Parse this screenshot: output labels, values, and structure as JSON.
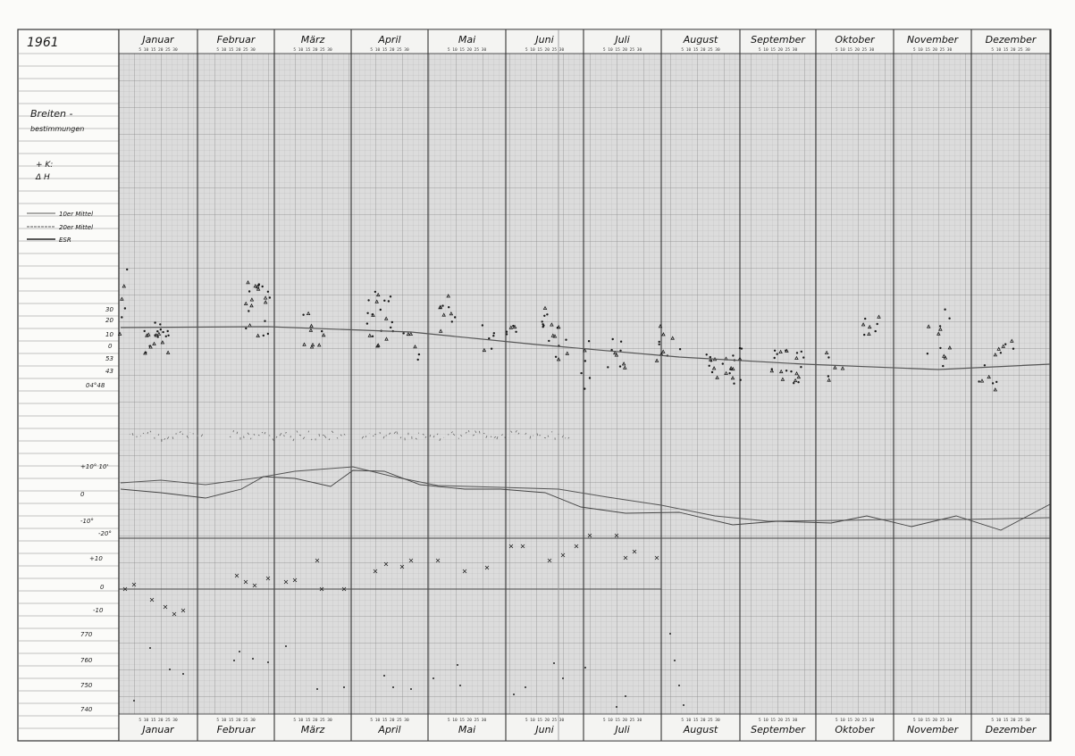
{
  "sheet": {
    "year": "1961",
    "title_line1": "Breiten -",
    "title_line2": "bestimmungen",
    "legend_symbols": [
      "+ K:",
      "Δ H"
    ],
    "legend_lines": [
      "10er Mittel",
      "20er Mittel",
      "ESR"
    ],
    "months_top": [
      "Januar",
      "Februar",
      "März",
      "April",
      "Mai",
      "Juni",
      "Juli",
      "August",
      "September",
      "Oktober",
      "November",
      "Dezember"
    ],
    "months_bottom": [
      "Januar",
      "Februar",
      "März",
      "April",
      "Mai",
      "Juni",
      "Juli",
      "August",
      "September",
      "Oktober",
      "November",
      "Dezember"
    ],
    "day_ticks": "5 10 15 20 25 30",
    "upper_axis_labels": [
      "30",
      "20",
      "10",
      "0",
      "53",
      "43",
      "04°48"
    ],
    "middle_axis_labels": [
      "+10° 10'",
      "0",
      "-10°",
      "-20°"
    ],
    "lower_axis_labels": [
      "+10",
      "0",
      "-10"
    ],
    "bottom_axis_labels": [
      "770",
      "760",
      "750",
      "740"
    ]
  },
  "colors": {
    "paper": "#fbfbf9",
    "grid_fine": "#c9c9c9",
    "grid_main": "#555555",
    "ink": "#1a1a1a",
    "pencil": "#555555"
  }
}
